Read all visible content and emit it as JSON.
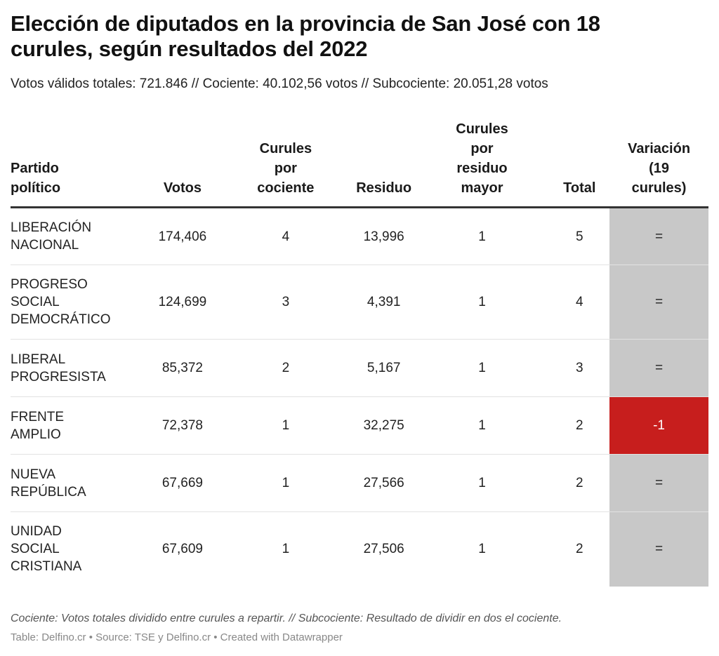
{
  "title": "Elección de diputados en la provincia de San José con 18 curules, según resultados del 2022",
  "subtitle": "Votos válidos totales: 721.846 // Cociente: 40.102,56 votos // Subcociente: 20.051,28 votos",
  "colors": {
    "variation_neutral": "#c8c8c8",
    "variation_negative": "#c71e1d",
    "header_rule": "#333333"
  },
  "chart_data": {
    "type": "table",
    "columns": [
      "Partido político",
      "Votos",
      "Curules por cociente",
      "Residuo",
      "Curules por residuo mayor",
      "Total",
      "Variación (19 curules)"
    ],
    "rows": [
      {
        "party": "LIBERACIÓN NACIONAL",
        "votos": "174,406",
        "cociente": "4",
        "residuo": "13,996",
        "residuo_mayor": "1",
        "total": "5",
        "variacion": "=",
        "variacion_value": 0
      },
      {
        "party": "PROGRESO SOCIAL DEMOCRÁTICO",
        "votos": "124,699",
        "cociente": "3",
        "residuo": "4,391",
        "residuo_mayor": "1",
        "total": "4",
        "variacion": "=",
        "variacion_value": 0
      },
      {
        "party": "LIBERAL PROGRESISTA",
        "votos": "85,372",
        "cociente": "2",
        "residuo": "5,167",
        "residuo_mayor": "1",
        "total": "3",
        "variacion": "=",
        "variacion_value": 0
      },
      {
        "party": "FRENTE AMPLIO",
        "votos": "72,378",
        "cociente": "1",
        "residuo": "32,275",
        "residuo_mayor": "1",
        "total": "2",
        "variacion": "-1",
        "variacion_value": -1
      },
      {
        "party": "NUEVA REPÚBLICA",
        "votos": "67,669",
        "cociente": "1",
        "residuo": "27,566",
        "residuo_mayor": "1",
        "total": "2",
        "variacion": "=",
        "variacion_value": 0
      },
      {
        "party": "UNIDAD SOCIAL CRISTIANA",
        "votos": "67,609",
        "cociente": "1",
        "residuo": "27,506",
        "residuo_mayor": "1",
        "total": "2",
        "variacion": "=",
        "variacion_value": 0
      }
    ]
  },
  "notes": "Cociente: Votos totales dividido entre curules a repartir. // Subcociente: Resultado de dividir en dos el cociente.",
  "credit": "Table: Delfino.cr • Source: TSE y Delfino.cr • Created with Datawrapper"
}
